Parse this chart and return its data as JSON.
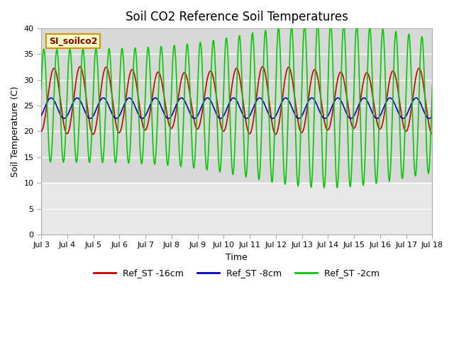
{
  "title": "Soil CO2 Reference Soil Temperatures",
  "xlabel": "Time",
  "ylabel": "Soil Temperature (C)",
  "ylim": [
    0,
    40
  ],
  "yticks": [
    0,
    5,
    10,
    15,
    20,
    25,
    30,
    35,
    40
  ],
  "x_labels": [
    "Jul 3",
    "Jul 4",
    "Jul 5",
    "Jul 6",
    "Jul 7",
    "Jul 8",
    "Jul 9",
    "Jul 10",
    "Jul 11",
    "Jul 12",
    "Jul 13",
    "Jul 14",
    "Jul 15",
    "Jul 16",
    "Jul 17",
    "Jul 18"
  ],
  "line_colors": {
    "red": "#cc0000",
    "blue": "#0000cc",
    "green": "#00cc00"
  },
  "annotation_text": "SI_soilco2",
  "annotation_bg": "#ffffcc",
  "annotation_border": "#cc9900",
  "bg_upper": "#d8d8d8",
  "bg_lower": "#e8e8e8",
  "grid_color": "#ffffff",
  "legend_labels": [
    "Ref_ST -16cm",
    "Ref_ST -8cm",
    "Ref_ST -2cm"
  ],
  "legend_colors": [
    "#cc0000",
    "#0000cc",
    "#00cc00"
  ]
}
